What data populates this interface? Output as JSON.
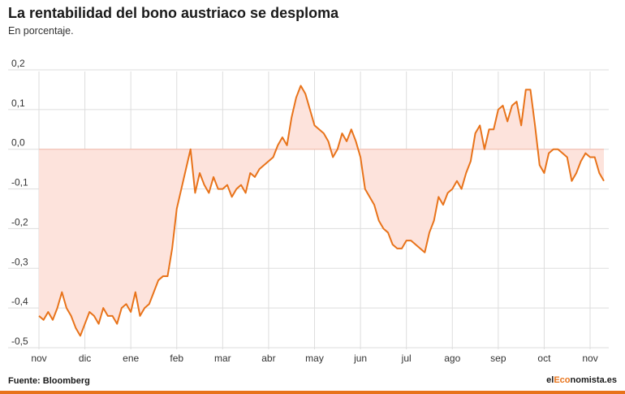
{
  "header": {
    "title": "La rentabilidad del bono austriaco se desploma",
    "subtitle": "En porcentaje."
  },
  "footer": {
    "source": "Fuente: Bloomberg",
    "brand_prefix": "el",
    "brand_accent": "Eco",
    "brand_suffix": "nomista.es"
  },
  "colors": {
    "line": "#e8731a",
    "fill": "#fde3dc",
    "grid": "#dddddd",
    "accent_bar": "#e8731a"
  },
  "chart_data": {
    "type": "area",
    "title": "La rentabilidad del bono austriaco se desploma",
    "subtitle": "En porcentaje.",
    "xlabel": "",
    "ylabel": "",
    "ylim": [
      -0.5,
      0.2
    ],
    "baseline": 0.0,
    "grid": true,
    "y_ticks": [
      0.2,
      0.1,
      0.0,
      -0.1,
      -0.2,
      -0.3,
      -0.4,
      -0.5
    ],
    "y_tick_labels": [
      "0,2",
      "0,1",
      "0,0",
      "-0,1",
      "-0,2",
      "-0,3",
      "-0,4",
      "-0,5"
    ],
    "x_ticks": [
      "nov",
      "dic",
      "ene",
      "feb",
      "mar",
      "abr",
      "may",
      "jun",
      "jul",
      "ago",
      "sep",
      "oct",
      "nov"
    ],
    "x_range": [
      0,
      12.3
    ],
    "series": [
      {
        "x": [
          0.0,
          0.1,
          0.2,
          0.3,
          0.4,
          0.5,
          0.6,
          0.7,
          0.8,
          0.9,
          1.0,
          1.1,
          1.2,
          1.3,
          1.4,
          1.5,
          1.6,
          1.7,
          1.8,
          1.9,
          2.0,
          2.1,
          2.2,
          2.3,
          2.4,
          2.5,
          2.6,
          2.7,
          2.8,
          2.9,
          3.0,
          3.1,
          3.2,
          3.3,
          3.4,
          3.5,
          3.6,
          3.7,
          3.8,
          3.9,
          4.0,
          4.1,
          4.2,
          4.3,
          4.4,
          4.5,
          4.6,
          4.7,
          4.8,
          4.9,
          5.0,
          5.1,
          5.2,
          5.3,
          5.4,
          5.5,
          5.6,
          5.7,
          5.8,
          5.9,
          6.0,
          6.1,
          6.2,
          6.3,
          6.4,
          6.5,
          6.6,
          6.7,
          6.8,
          6.9,
          7.0,
          7.1,
          7.2,
          7.3,
          7.4,
          7.5,
          7.6,
          7.7,
          7.8,
          7.9,
          8.0,
          8.1,
          8.2,
          8.3,
          8.4,
          8.5,
          8.6,
          8.7,
          8.8,
          8.9,
          9.0,
          9.1,
          9.2,
          9.3,
          9.4,
          9.5,
          9.6,
          9.7,
          9.8,
          9.9,
          10.0,
          10.1,
          10.2,
          10.3,
          10.4,
          10.5,
          10.6,
          10.7,
          10.8,
          10.9,
          11.0,
          11.1,
          11.2,
          11.3,
          11.4,
          11.5,
          11.6,
          11.7,
          11.8,
          11.9,
          12.0,
          12.1,
          12.2,
          12.3
        ],
        "values": [
          -0.42,
          -0.43,
          -0.41,
          -0.43,
          -0.4,
          -0.36,
          -0.4,
          -0.42,
          -0.45,
          -0.47,
          -0.44,
          -0.41,
          -0.42,
          -0.44,
          -0.4,
          -0.42,
          -0.42,
          -0.44,
          -0.4,
          -0.39,
          -0.41,
          -0.36,
          -0.42,
          -0.4,
          -0.39,
          -0.36,
          -0.33,
          -0.32,
          -0.32,
          -0.25,
          -0.15,
          -0.1,
          -0.05,
          0.0,
          -0.11,
          -0.06,
          -0.09,
          -0.11,
          -0.07,
          -0.1,
          -0.1,
          -0.09,
          -0.12,
          -0.1,
          -0.09,
          -0.11,
          -0.06,
          -0.07,
          -0.05,
          -0.04,
          -0.03,
          -0.02,
          0.01,
          0.03,
          0.01,
          0.08,
          0.13,
          0.16,
          0.14,
          0.1,
          0.06,
          0.05,
          0.04,
          0.02,
          -0.02,
          0.0,
          0.04,
          0.02,
          0.05,
          0.02,
          -0.02,
          -0.1,
          -0.12,
          -0.14,
          -0.18,
          -0.2,
          -0.21,
          -0.24,
          -0.25,
          -0.25,
          -0.23,
          -0.23,
          -0.24,
          -0.25,
          -0.26,
          -0.21,
          -0.18,
          -0.12,
          -0.14,
          -0.11,
          -0.1,
          -0.08,
          -0.1,
          -0.06,
          -0.03,
          0.04,
          0.06,
          0.0,
          0.05,
          0.05,
          0.1,
          0.11,
          0.07,
          0.11,
          0.12,
          0.06,
          0.15,
          0.15,
          0.06,
          -0.04,
          -0.06,
          -0.01,
          0.0,
          0.0,
          -0.01,
          -0.02,
          -0.08,
          -0.06,
          -0.03,
          -0.01,
          -0.02,
          -0.02,
          -0.06,
          -0.08
        ]
      }
    ]
  }
}
